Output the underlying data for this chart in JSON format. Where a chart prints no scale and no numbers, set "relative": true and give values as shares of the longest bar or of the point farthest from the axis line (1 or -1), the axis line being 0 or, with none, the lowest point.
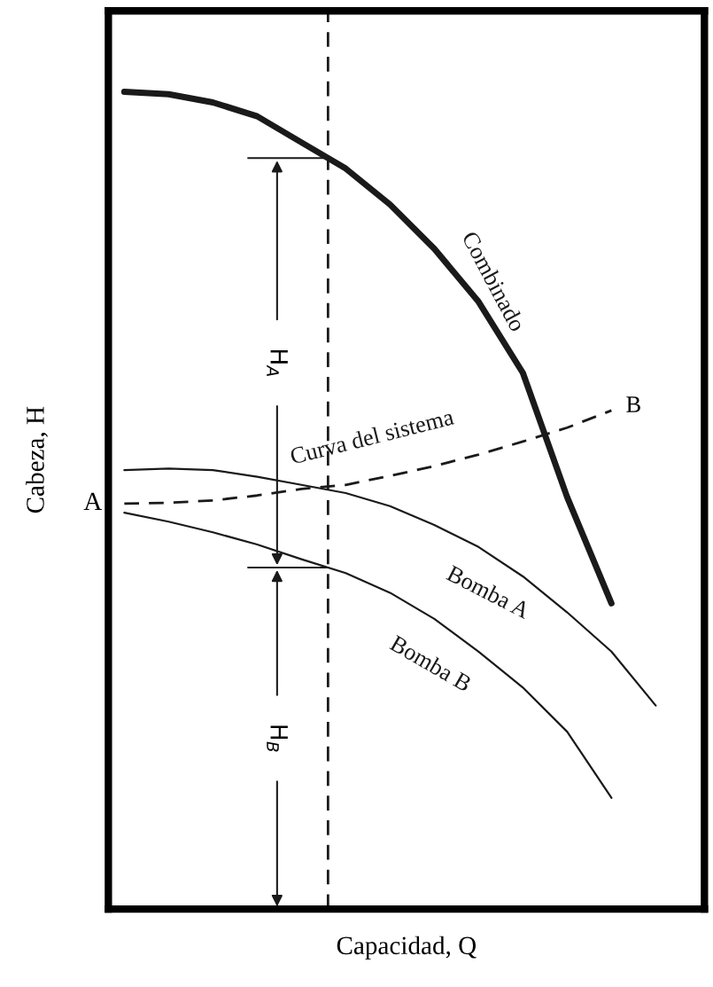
{
  "chart_data": {
    "type": "line",
    "relative": true,
    "xlabel": "Capacidad, Q",
    "ylabel": "Cabeza, H",
    "categories": [
      null,
      null,
      null,
      null,
      null,
      null,
      null,
      null,
      null,
      null,
      null,
      null,
      null
    ],
    "series": [
      {
        "name": "Combinado",
        "color": "#1a1a1a",
        "values": [
          1.0,
          0.997,
          0.987,
          0.97,
          0.938,
          0.906,
          0.862,
          0.808,
          0.743,
          0.656,
          0.504,
          0.374,
          null
        ]
      },
      {
        "name": "Curva del sistema",
        "color": "#1a1a1a",
        "line_style": "dashed",
        "values": [
          0.496,
          0.497,
          0.5,
          0.506,
          0.514,
          0.519,
          0.53,
          0.542,
          0.556,
          0.572,
          0.589,
          0.61,
          null
        ]
      },
      {
        "name": "Bomba A",
        "color": "#1a1a1a",
        "values": [
          0.537,
          0.539,
          0.537,
          0.529,
          0.519,
          0.509,
          0.493,
          0.47,
          0.443,
          0.407,
          0.363,
          0.315,
          0.249
        ]
      },
      {
        "name": "Bomba B",
        "color": "#1a1a1a",
        "values": [
          0.485,
          0.474,
          0.461,
          0.446,
          0.428,
          0.411,
          0.387,
          0.355,
          0.315,
          0.271,
          0.217,
          0.136,
          null
        ]
      }
    ],
    "annotations": [
      "A",
      "B",
      "H$_{A}$",
      "H$_{B}$"
    ],
    "legend": false,
    "tick_labels": false,
    "marker": "none"
  }
}
